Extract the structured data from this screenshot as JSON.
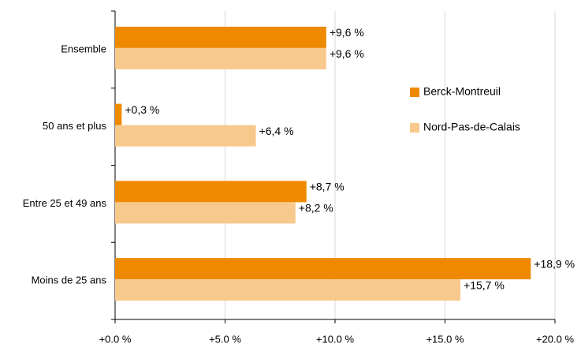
{
  "chart_data": {
    "type": "hbar",
    "categories": [
      "Ensemble",
      "50 ans et plus",
      "Entre 25 et 49 ans",
      "Moins de 25 ans"
    ],
    "series": [
      {
        "name": "Berck-Montreuil",
        "color": "#ef8a00",
        "values": [
          9.6,
          0.3,
          8.7,
          18.9
        ],
        "value_labels": [
          "+9,6 %",
          "+0,3 %",
          "+8,7 %",
          "+18,9 %"
        ]
      },
      {
        "name": "Nord-Pas-de-Calais",
        "color": "#f8c98c",
        "values": [
          9.6,
          6.4,
          8.2,
          15.7
        ],
        "value_labels": [
          "+9,6 %",
          "+6,4 %",
          "+8,2 %",
          "+15,7 %"
        ]
      }
    ],
    "xlim": [
      0,
      20
    ],
    "xticks": [
      {
        "value": 0,
        "label": "+0.0 %"
      },
      {
        "value": 5,
        "label": "+5.0 %"
      },
      {
        "value": 10,
        "label": "+10.0 %"
      },
      {
        "value": 15,
        "label": "+15.0 %"
      },
      {
        "value": 20,
        "label": "+20.0 %"
      }
    ],
    "grid": true,
    "legend": "right"
  }
}
